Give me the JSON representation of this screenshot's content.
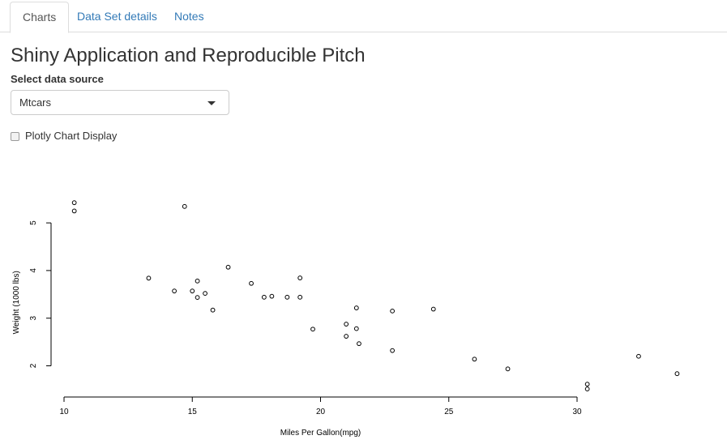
{
  "tabs": [
    {
      "label": "Charts",
      "active": true
    },
    {
      "label": "Data Set details",
      "active": false
    },
    {
      "label": "Notes",
      "active": false
    }
  ],
  "page_title": "Shiny Application and Reproducible Pitch",
  "data_source": {
    "label": "Select data source",
    "selected": "Mtcars"
  },
  "plotly_toggle": {
    "label": "Plotly Chart Display",
    "checked": false
  },
  "chart_data": {
    "type": "scatter",
    "title": "",
    "xlabel": "Miles Per Gallon(mpg)",
    "ylabel": "Weight (1000 lbs)",
    "xticks": [
      10,
      15,
      20,
      25,
      30
    ],
    "yticks": [
      2,
      3,
      4,
      5
    ],
    "xlim": [
      10,
      34
    ],
    "ylim": [
      1.5,
      5.4
    ],
    "marker": "open-circle",
    "series": [
      {
        "points": [
          [
            21.0,
            2.62
          ],
          [
            21.0,
            2.875
          ],
          [
            22.8,
            2.32
          ],
          [
            21.4,
            3.215
          ],
          [
            18.7,
            3.44
          ],
          [
            18.1,
            3.46
          ],
          [
            14.3,
            3.57
          ],
          [
            24.4,
            3.19
          ],
          [
            22.8,
            3.15
          ],
          [
            19.2,
            3.44
          ],
          [
            17.8,
            3.44
          ],
          [
            16.4,
            4.07
          ],
          [
            17.3,
            3.73
          ],
          [
            15.2,
            3.78
          ],
          [
            10.4,
            5.25
          ],
          [
            10.4,
            5.424
          ],
          [
            14.7,
            5.345
          ],
          [
            32.4,
            2.2
          ],
          [
            30.4,
            1.615
          ],
          [
            33.9,
            1.835
          ],
          [
            21.5,
            2.465
          ],
          [
            15.5,
            3.52
          ],
          [
            15.2,
            3.435
          ],
          [
            13.3,
            3.84
          ],
          [
            19.2,
            3.845
          ],
          [
            27.3,
            1.935
          ],
          [
            26.0,
            2.14
          ],
          [
            30.4,
            1.513
          ],
          [
            15.8,
            3.17
          ],
          [
            19.7,
            2.77
          ],
          [
            15.0,
            3.57
          ],
          [
            21.4,
            2.78
          ]
        ]
      }
    ]
  }
}
